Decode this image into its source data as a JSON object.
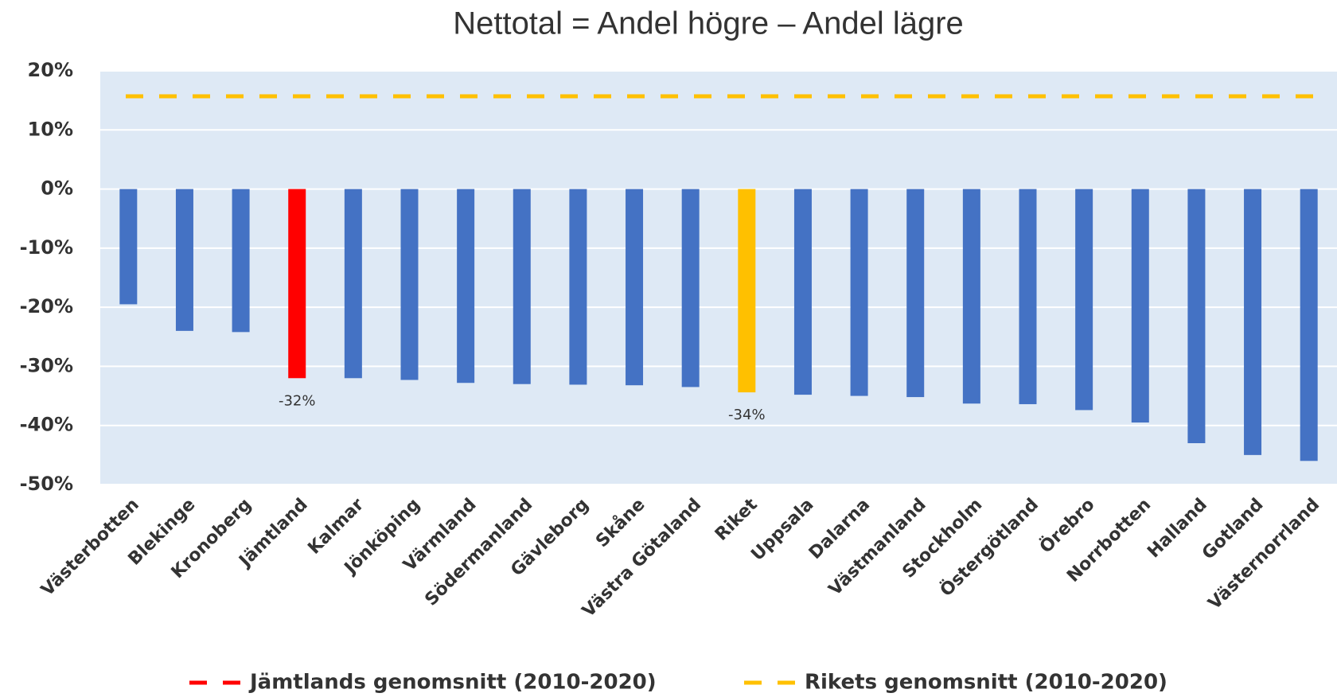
{
  "chart_data": {
    "type": "bar",
    "title": "Nettotal = Andel högre – Andel lägre",
    "categories": [
      "Västerbotten",
      "Blekinge",
      "Kronoberg",
      "Jämtland",
      "Kalmar",
      "Jönköping",
      "Värmland",
      "Södermanland",
      "Gävleborg",
      "Skåne",
      "Västra Götaland",
      "Riket",
      "Uppsala",
      "Dalarna",
      "Västmanland",
      "Stockholm",
      "Östergötland",
      "Örebro",
      "Norrbotten",
      "Halland",
      "Gotland",
      "Västernorrland"
    ],
    "values": [
      -19.5,
      -24,
      -24.2,
      -32,
      -32,
      -32.3,
      -32.8,
      -33,
      -33.1,
      -33.2,
      -33.5,
      -34.4,
      -34.8,
      -35,
      -35.2,
      -36.3,
      -36.4,
      -37.4,
      -39.5,
      -43,
      -45,
      -46
    ],
    "value_labels": [
      null,
      null,
      null,
      "-32%",
      null,
      null,
      null,
      null,
      null,
      null,
      null,
      "-34%",
      null,
      null,
      null,
      null,
      null,
      null,
      null,
      null,
      null,
      null
    ],
    "colors": [
      "#4472c4",
      "#4472c4",
      "#4472c4",
      "#ff0000",
      "#4472c4",
      "#4472c4",
      "#4472c4",
      "#4472c4",
      "#4472c4",
      "#4472c4",
      "#4472c4",
      "#ffc000",
      "#4472c4",
      "#4472c4",
      "#4472c4",
      "#4472c4",
      "#4472c4",
      "#4472c4",
      "#4472c4",
      "#4472c4",
      "#4472c4",
      "#4472c4"
    ],
    "reference_lines": [
      {
        "name": "Jämtlands genomsnitt (2010-2020)",
        "color": "#ff0000",
        "value": 15.7
      },
      {
        "name": "Rikets genomsnitt (2010-2020)",
        "color": "#ffc000",
        "value": 15.7
      }
    ],
    "ylim": [
      -50,
      20
    ],
    "yticks": [
      {
        "value": -50,
        "label": "-50%"
      },
      {
        "value": -40,
        "label": "-40%"
      },
      {
        "value": -30,
        "label": "-30%"
      },
      {
        "value": -20,
        "label": "-20%"
      },
      {
        "value": -10,
        "label": "-10%"
      },
      {
        "value": 0,
        "label": "0%"
      },
      {
        "value": 10,
        "label": "10%"
      },
      {
        "value": 20,
        "label": "20%"
      }
    ],
    "grid": true
  }
}
